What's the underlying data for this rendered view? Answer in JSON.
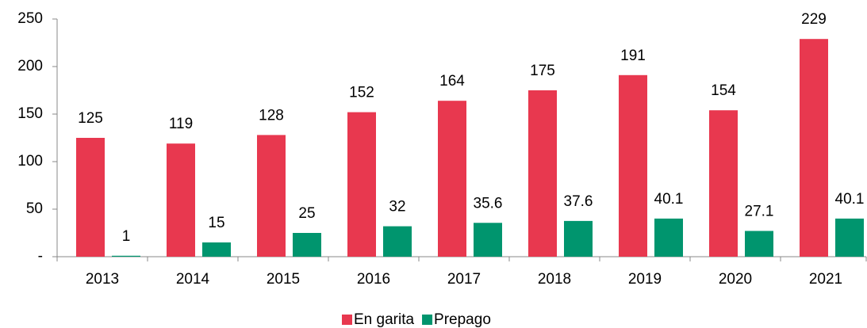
{
  "chart_data": {
    "type": "bar",
    "categories": [
      "2013",
      "2014",
      "2015",
      "2016",
      "2017",
      "2018",
      "2019",
      "2020",
      "2021"
    ],
    "series": [
      {
        "name": "En garita",
        "color": "#e8384f",
        "values": [
          125,
          119,
          128,
          152,
          164,
          175,
          191,
          154,
          229
        ]
      },
      {
        "name": "Prepago",
        "color": "#00956e",
        "values": [
          1,
          15,
          25,
          32,
          35.6,
          37.6,
          40.1,
          27.1,
          40.1
        ]
      }
    ],
    "ylim": [
      0,
      250
    ],
    "yticks": [
      {
        "value": 0,
        "label": "-"
      },
      50,
      100,
      150,
      200,
      250
    ],
    "grid": false,
    "legend": "bottom"
  }
}
